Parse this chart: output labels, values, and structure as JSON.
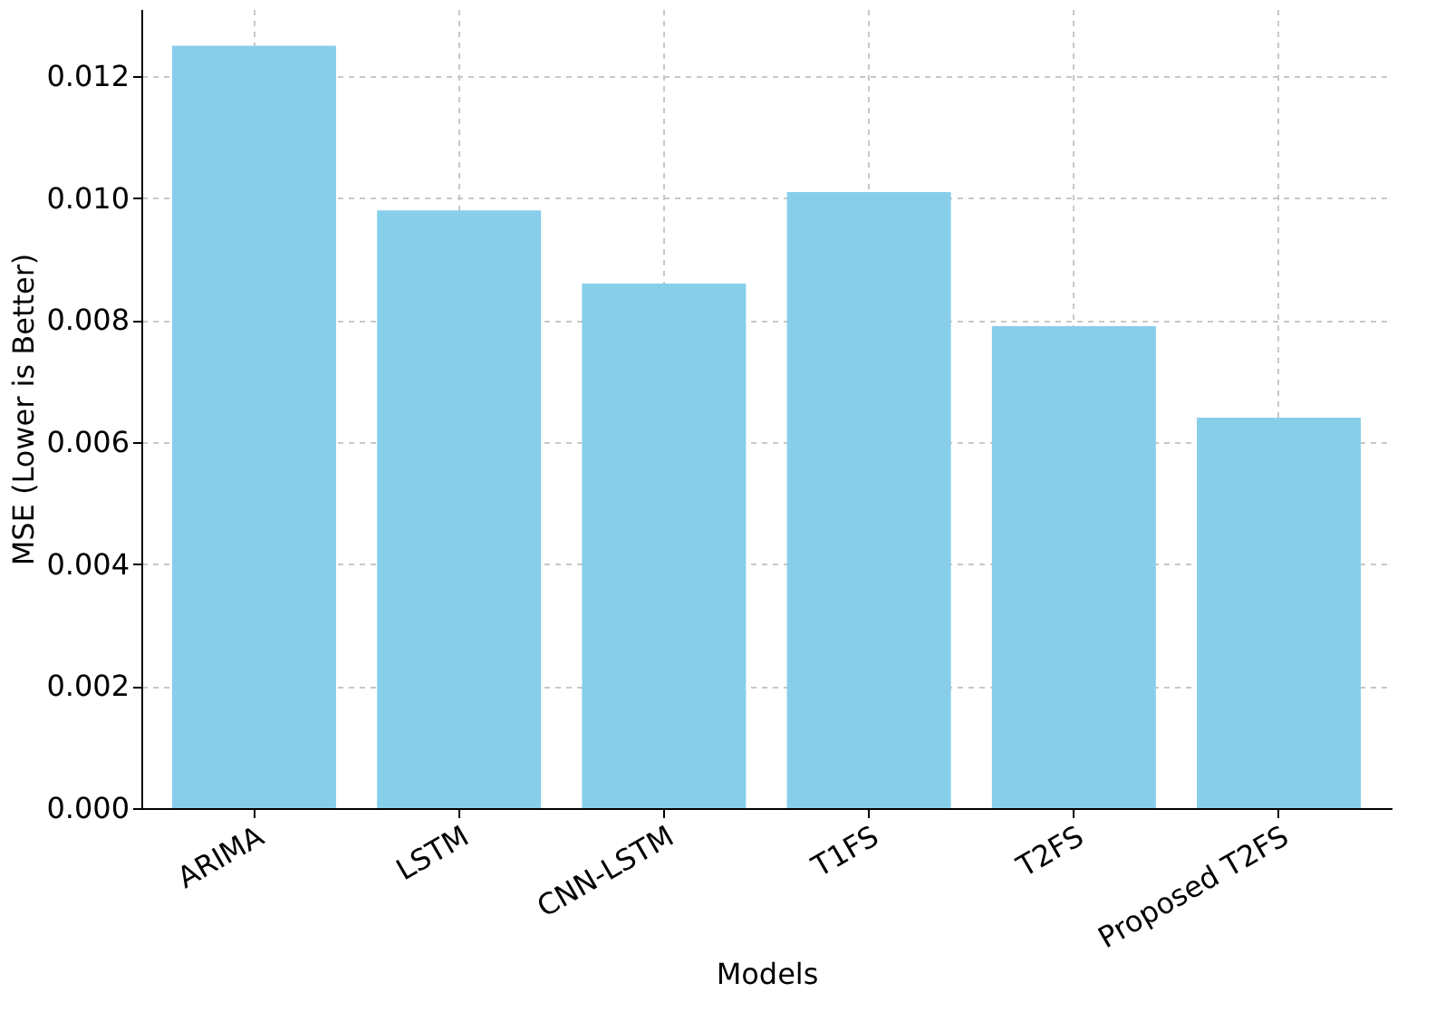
{
  "chart_data": {
    "type": "bar",
    "xlabel": "Models",
    "ylabel": "MSE (Lower is Better)",
    "categories": [
      "ARIMA",
      "LSTM",
      "CNN-LSTM",
      "T1FS",
      "T2FS",
      "Proposed T2FS"
    ],
    "values": [
      0.0125,
      0.0098,
      0.0086,
      0.0101,
      0.0079,
      0.0064
    ],
    "color": "#87ceeb",
    "ylim": [
      0,
      0.0131
    ],
    "yticks": [
      {
        "value": 0,
        "label": "0.000"
      },
      0.002,
      0.004,
      0.006,
      0.008,
      {
        "value": 0.01,
        "label": "0.010"
      },
      0.012
    ],
    "grid": true
  }
}
